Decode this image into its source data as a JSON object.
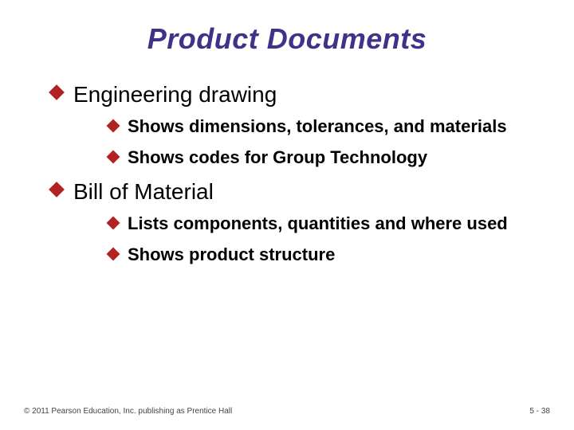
{
  "title": {
    "text": "Product Documents",
    "color": "#3f3289",
    "fontsize": 36
  },
  "bullet_color": "#b22222",
  "l1_fontsize": 28,
  "l2_fontsize": 22,
  "items": [
    {
      "label": "Engineering drawing",
      "sub": [
        "Shows dimensions, tolerances, and materials",
        "Shows codes for Group Technology"
      ]
    },
    {
      "label": "Bill of Material",
      "sub": [
        "Lists components, quantities and where used",
        "Shows product structure"
      ]
    }
  ],
  "footer": {
    "left": "© 2011 Pearson Education, Inc. publishing as Prentice Hall",
    "right": "5 - 38"
  }
}
